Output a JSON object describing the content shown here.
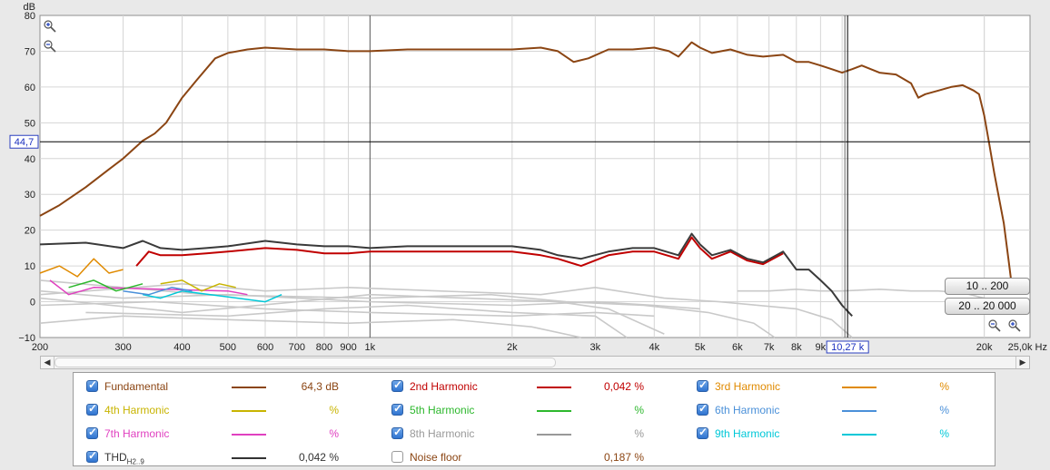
{
  "chart_data": {
    "type": "line",
    "ylabel": "dB",
    "x_scale": "log",
    "xlim": [
      200,
      25000
    ],
    "ylim": [
      -10,
      80
    ],
    "y_ticks": [
      "80",
      "70",
      "60",
      "50",
      "40",
      "30",
      "20",
      "10",
      "0",
      "−10"
    ],
    "x_ticks": [
      {
        "v": 200,
        "label": "200"
      },
      {
        "v": 300,
        "label": "300"
      },
      {
        "v": 400,
        "label": "400"
      },
      {
        "v": 500,
        "label": "500"
      },
      {
        "v": 600,
        "label": "600"
      },
      {
        "v": 700,
        "label": "700"
      },
      {
        "v": 800,
        "label": "800"
      },
      {
        "v": 900,
        "label": "900"
      },
      {
        "v": 1000,
        "label": "1k"
      },
      {
        "v": 2000,
        "label": "2k"
      },
      {
        "v": 3000,
        "label": "3k"
      },
      {
        "v": 4000,
        "label": "4k"
      },
      {
        "v": 5000,
        "label": "5k"
      },
      {
        "v": 6000,
        "label": "6k"
      },
      {
        "v": 7000,
        "label": "7k"
      },
      {
        "v": 8000,
        "label": "8k"
      },
      {
        "v": 9000,
        "label": "9k"
      },
      {
        "v": 20000,
        "label": "20k"
      },
      {
        "v": 25000,
        "label": "25,0k Hz"
      }
    ],
    "cursor": {
      "x": 10270,
      "x_label": "10,27 k",
      "y": 44.7,
      "y_label": "44,7"
    },
    "series": [
      {
        "name": "Fundamental",
        "color": "#8b4513",
        "width": 2,
        "points": [
          [
            200,
            24
          ],
          [
            220,
            27
          ],
          [
            250,
            32
          ],
          [
            280,
            37
          ],
          [
            300,
            40
          ],
          [
            330,
            45
          ],
          [
            350,
            47
          ],
          [
            370,
            50
          ],
          [
            400,
            57
          ],
          [
            430,
            62
          ],
          [
            470,
            68
          ],
          [
            500,
            69.5
          ],
          [
            550,
            70.5
          ],
          [
            600,
            71
          ],
          [
            700,
            70.5
          ],
          [
            800,
            70.5
          ],
          [
            900,
            70
          ],
          [
            1000,
            70
          ],
          [
            1200,
            70.5
          ],
          [
            1500,
            70.5
          ],
          [
            1700,
            70.5
          ],
          [
            2000,
            70.5
          ],
          [
            2300,
            71
          ],
          [
            2500,
            70
          ],
          [
            2700,
            67
          ],
          [
            2900,
            68
          ],
          [
            3200,
            70.5
          ],
          [
            3600,
            70.5
          ],
          [
            4000,
            71
          ],
          [
            4300,
            70
          ],
          [
            4500,
            68.5
          ],
          [
            4800,
            72.5
          ],
          [
            5000,
            71
          ],
          [
            5300,
            69.5
          ],
          [
            5800,
            70.5
          ],
          [
            6300,
            69
          ],
          [
            6800,
            68.5
          ],
          [
            7500,
            69
          ],
          [
            8000,
            67
          ],
          [
            8500,
            67
          ],
          [
            9000,
            66
          ],
          [
            9500,
            65
          ],
          [
            10000,
            64
          ],
          [
            10500,
            65
          ],
          [
            11000,
            66
          ],
          [
            12000,
            64
          ],
          [
            13000,
            63.5
          ],
          [
            14000,
            61
          ],
          [
            14500,
            57
          ],
          [
            15000,
            58
          ],
          [
            16000,
            59
          ],
          [
            17000,
            60
          ],
          [
            18000,
            60.5
          ],
          [
            19000,
            59
          ],
          [
            19500,
            58
          ],
          [
            20000,
            52
          ],
          [
            20500,
            44
          ],
          [
            21000,
            36
          ],
          [
            22000,
            22
          ],
          [
            22500,
            12
          ],
          [
            23000,
            2
          ]
        ]
      },
      {
        "name": "THD",
        "color": "#3a3a3a",
        "width": 2,
        "points": [
          [
            200,
            16
          ],
          [
            250,
            16.5
          ],
          [
            300,
            15
          ],
          [
            330,
            17
          ],
          [
            360,
            15
          ],
          [
            400,
            14.5
          ],
          [
            450,
            15
          ],
          [
            500,
            15.5
          ],
          [
            600,
            17
          ],
          [
            700,
            16
          ],
          [
            800,
            15.5
          ],
          [
            900,
            15.5
          ],
          [
            1000,
            15
          ],
          [
            1200,
            15.5
          ],
          [
            1500,
            15.5
          ],
          [
            2000,
            15.5
          ],
          [
            2300,
            14.5
          ],
          [
            2500,
            13
          ],
          [
            2800,
            12
          ],
          [
            3200,
            14
          ],
          [
            3600,
            15
          ],
          [
            4000,
            15
          ],
          [
            4500,
            13
          ],
          [
            4800,
            19
          ],
          [
            5000,
            16
          ],
          [
            5300,
            13
          ],
          [
            5800,
            14.5
          ],
          [
            6300,
            12
          ],
          [
            6800,
            11
          ],
          [
            7500,
            14
          ],
          [
            8000,
            9
          ],
          [
            8500,
            9
          ],
          [
            9000,
            6
          ],
          [
            9500,
            3
          ],
          [
            10000,
            -1
          ],
          [
            10500,
            -4
          ]
        ]
      },
      {
        "name": "2nd Harmonic",
        "color": "#c00000",
        "width": 2,
        "points": [
          [
            320,
            10
          ],
          [
            340,
            14
          ],
          [
            360,
            13
          ],
          [
            400,
            13
          ],
          [
            450,
            13.5
          ],
          [
            500,
            14
          ],
          [
            600,
            15
          ],
          [
            700,
            14.5
          ],
          [
            800,
            13.5
          ],
          [
            900,
            13.5
          ],
          [
            1000,
            14
          ],
          [
            1200,
            14
          ],
          [
            1500,
            14
          ],
          [
            2000,
            14
          ],
          [
            2300,
            13
          ],
          [
            2500,
            12
          ],
          [
            2800,
            10
          ],
          [
            3200,
            13
          ],
          [
            3600,
            14
          ],
          [
            4000,
            14
          ],
          [
            4500,
            12
          ],
          [
            4800,
            18
          ],
          [
            5000,
            15
          ],
          [
            5300,
            12
          ],
          [
            5800,
            14
          ],
          [
            6300,
            11.5
          ],
          [
            6800,
            10.5
          ],
          [
            7500,
            13.5
          ]
        ]
      },
      {
        "name": "3rd Harmonic",
        "color": "#e08a00",
        "width": 1.5,
        "points": [
          [
            200,
            8
          ],
          [
            220,
            10
          ],
          [
            240,
            7
          ],
          [
            260,
            12
          ],
          [
            280,
            8
          ],
          [
            300,
            9
          ]
        ]
      },
      {
        "name": "4th Harmonic",
        "color": "#c8b400",
        "width": 1.5,
        "points": [
          [
            360,
            5
          ],
          [
            400,
            6
          ],
          [
            440,
            3
          ],
          [
            480,
            5
          ],
          [
            520,
            4
          ]
        ]
      },
      {
        "name": "5th Harmonic",
        "color": "#2db82d",
        "width": 1.5,
        "points": [
          [
            230,
            4
          ],
          [
            260,
            6
          ],
          [
            290,
            3
          ],
          [
            330,
            5
          ]
        ]
      },
      {
        "name": "6th Harmonic",
        "color": "#4a90d9",
        "width": 1.5,
        "points": [
          [
            300,
            3
          ],
          [
            340,
            2
          ],
          [
            380,
            4
          ],
          [
            420,
            3
          ]
        ]
      },
      {
        "name": "7th Harmonic",
        "color": "#e040c0",
        "width": 1.5,
        "points": [
          [
            210,
            6
          ],
          [
            230,
            2
          ],
          [
            260,
            4
          ],
          [
            500,
            3
          ],
          [
            550,
            2
          ]
        ]
      },
      {
        "name": "9th Harmonic",
        "color": "#00c8d8",
        "width": 1.5,
        "points": [
          [
            330,
            2
          ],
          [
            360,
            1
          ],
          [
            400,
            3
          ],
          [
            600,
            0
          ],
          [
            650,
            2
          ]
        ]
      }
    ],
    "grey_series": [
      [
        [
          200,
          3
        ],
        [
          300,
          1
        ],
        [
          500,
          2
        ],
        [
          1000,
          0
        ],
        [
          2000,
          -1
        ],
        [
          3000,
          0
        ],
        [
          4000,
          -1
        ],
        [
          5000,
          -2
        ]
      ],
      [
        [
          200,
          -1
        ],
        [
          350,
          0
        ],
        [
          600,
          -2
        ],
        [
          1000,
          -3
        ],
        [
          2000,
          -4
        ],
        [
          3000,
          -3
        ],
        [
          4000,
          -4
        ]
      ],
      [
        [
          200,
          1
        ],
        [
          400,
          -3
        ],
        [
          700,
          0
        ],
        [
          1000,
          2
        ],
        [
          1600,
          1
        ],
        [
          2500,
          0
        ],
        [
          3200,
          -2
        ],
        [
          4200,
          -9
        ]
      ],
      [
        [
          250,
          -3
        ],
        [
          500,
          -4
        ],
        [
          800,
          -2
        ],
        [
          1200,
          -1
        ],
        [
          2000,
          -3
        ],
        [
          3000,
          -4
        ],
        [
          3500,
          -10
        ]
      ],
      [
        [
          200,
          6
        ],
        [
          300,
          4
        ],
        [
          450,
          2
        ],
        [
          1000,
          1
        ],
        [
          1800,
          2
        ],
        [
          2600,
          0
        ],
        [
          3800,
          -1
        ],
        [
          5200,
          -3
        ],
        [
          6500,
          -6
        ],
        [
          7200,
          -10
        ]
      ],
      [
        [
          200,
          -6
        ],
        [
          300,
          -4
        ],
        [
          500,
          -5
        ],
        [
          900,
          -6
        ],
        [
          1500,
          -5
        ],
        [
          2200,
          -7
        ],
        [
          2800,
          -10
        ]
      ],
      [
        [
          200,
          2
        ],
        [
          400,
          5
        ],
        [
          600,
          3
        ],
        [
          900,
          4
        ],
        [
          1400,
          3
        ],
        [
          2300,
          2
        ],
        [
          3000,
          4
        ],
        [
          4200,
          1
        ],
        [
          5500,
          0
        ],
        [
          8000,
          -2
        ],
        [
          9500,
          -5
        ],
        [
          10500,
          -10
        ]
      ],
      [
        [
          6000,
          3
        ],
        [
          7000,
          3
        ],
        [
          8000,
          3.5
        ],
        [
          9000,
          3
        ],
        [
          10000,
          3
        ],
        [
          12000,
          3.5
        ],
        [
          14000,
          3
        ],
        [
          16000,
          3
        ],
        [
          18000,
          2.5
        ],
        [
          20000,
          1
        ],
        [
          21000,
          -2
        ]
      ]
    ]
  },
  "buttons": {
    "range1": "10 .. 200",
    "range2": "20 .. 20 000"
  },
  "legend": [
    {
      "label": "Fundamental",
      "value": "64,3 dB",
      "color": "#8b4513",
      "label_color": "#8b4513",
      "checked": true
    },
    {
      "label": "2nd Harmonic",
      "value": "0,042 %",
      "color": "#c00000",
      "label_color": "#c00000",
      "checked": true
    },
    {
      "label": "3rd Harmonic",
      "value": "%",
      "color": "#e08a00",
      "label_color": "#e08a00",
      "checked": true
    },
    {
      "label": "4th Harmonic",
      "value": "%",
      "color": "#c8b400",
      "label_color": "#c8b400",
      "checked": true
    },
    {
      "label": "5th Harmonic",
      "value": "%",
      "color": "#2db82d",
      "label_color": "#2db82d",
      "checked": true
    },
    {
      "label": "6th Harmonic",
      "value": "%",
      "color": "#4a90d9",
      "label_color": "#4a90d9",
      "checked": true
    },
    {
      "label": "7th Harmonic",
      "value": "%",
      "color": "#e040c0",
      "label_color": "#e040c0",
      "checked": true
    },
    {
      "label": "8th Harmonic",
      "value": "%",
      "color": "#999999",
      "label_color": "#999999",
      "checked": true
    },
    {
      "label": "9th Harmonic",
      "value": "%",
      "color": "#00c8d8",
      "label_color": "#00c8d8",
      "checked": true
    },
    {
      "label": "THD",
      "label_sub": "H2..9",
      "value": "0,042 %",
      "color": "#333333",
      "label_color": "#333333",
      "checked": true
    },
    {
      "label": "Noise floor",
      "value": "0,187 %",
      "color": "",
      "label_color": "#8b4513",
      "checked": false
    }
  ]
}
